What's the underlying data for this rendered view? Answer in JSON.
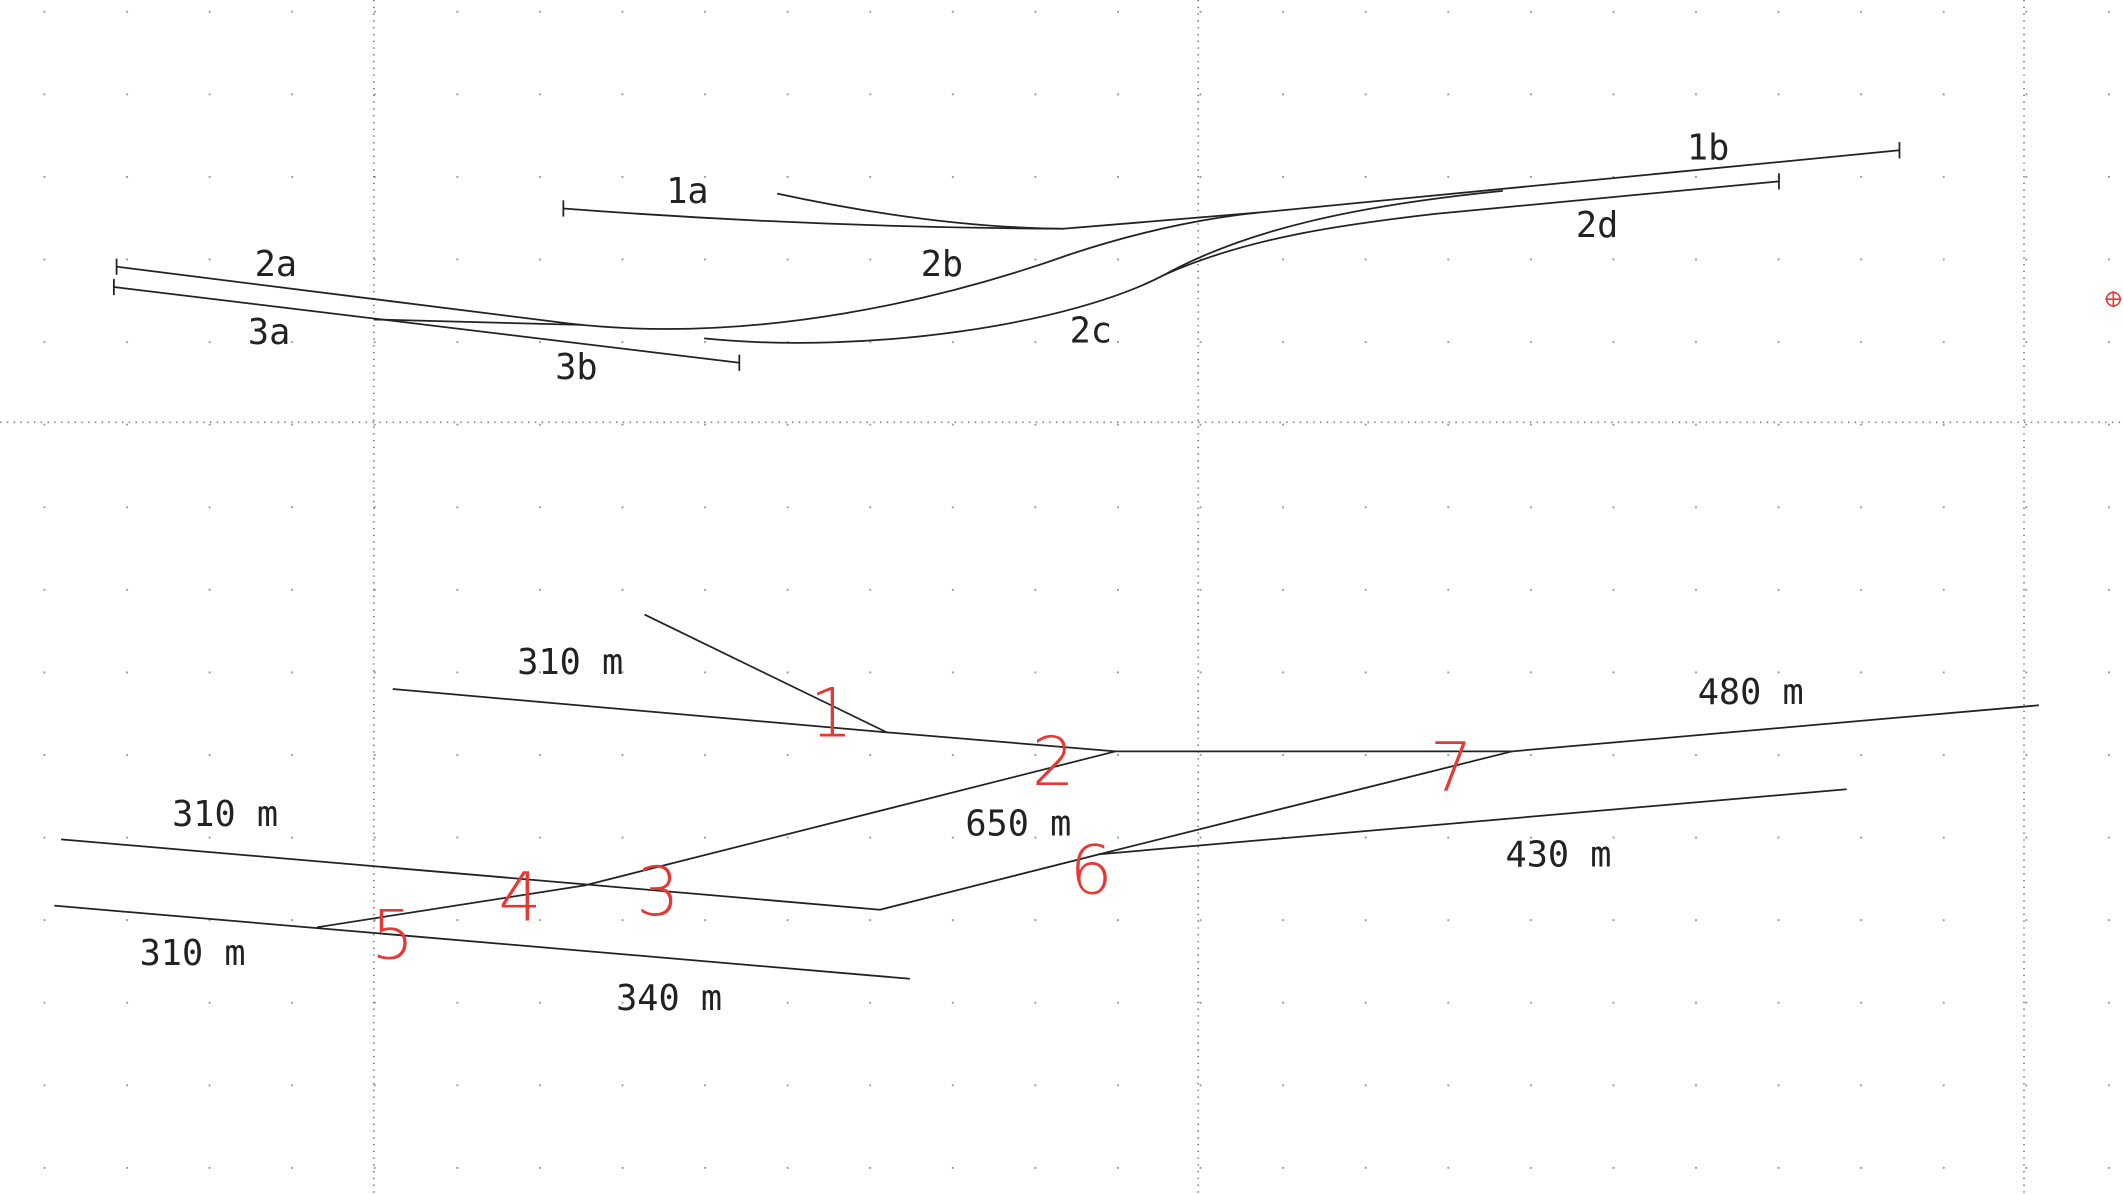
{
  "track_labels": [
    "1a",
    "1b",
    "2a",
    "2b",
    "2c",
    "2d",
    "3a",
    "3b"
  ],
  "lengths": [
    "310 m",
    "310 m",
    "310 m",
    "340 m",
    "650 m",
    "480 m",
    "430 m"
  ],
  "switches": [
    "1",
    "2",
    "3",
    "4",
    "5",
    "6",
    "7"
  ]
}
